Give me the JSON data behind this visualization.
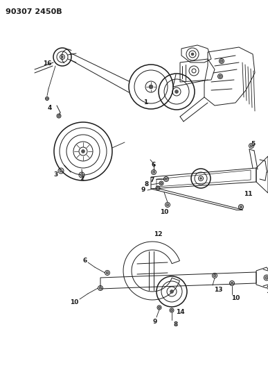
{
  "title": "90307 2450B",
  "bg_color": "#ffffff",
  "fig_width": 3.87,
  "fig_height": 5.33,
  "dpi": 100
}
